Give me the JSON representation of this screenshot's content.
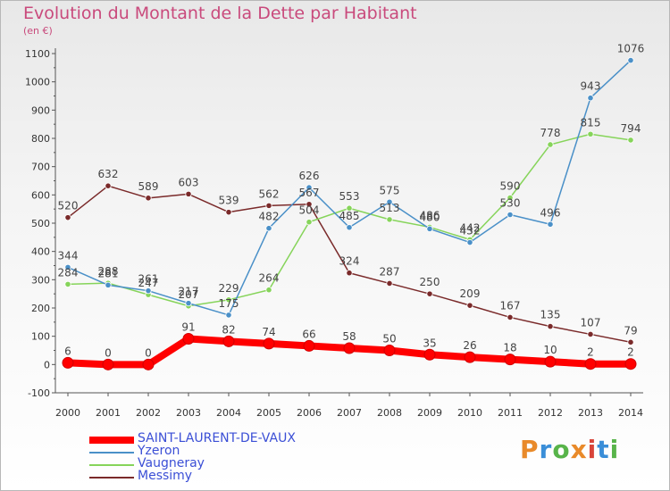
{
  "header": {
    "title": "Evolution du Montant de la Dette par Habitant",
    "subtitle": "(en €)"
  },
  "logo": {
    "text": "Proxiti",
    "colors": [
      "#e98a2a",
      "#3a8ed8",
      "#58b44a",
      "#e98a2a",
      "#d8453a",
      "#3a8ed8",
      "#58b44a"
    ]
  },
  "chart_data": {
    "type": "line",
    "x": [
      "2000",
      "2001",
      "2002",
      "2003",
      "2004",
      "2005",
      "2006",
      "2007",
      "2008",
      "2009",
      "2010",
      "2011",
      "2012",
      "2013",
      "2014"
    ],
    "ylim": [
      -100,
      1100
    ],
    "yticks": [
      "-100",
      "0",
      "100",
      "200",
      "300",
      "400",
      "500",
      "600",
      "700",
      "800",
      "900",
      "1000",
      "1100"
    ],
    "grid": false,
    "legend_position": "bottom-left",
    "series": [
      {
        "name": "SAINT-LAURENT-DE-VAUX",
        "color": "#ff0000",
        "values": [
          6,
          0,
          0,
          91,
          82,
          74,
          66,
          58,
          50,
          35,
          26,
          18,
          10,
          2,
          2
        ],
        "labels": [
          "6",
          "0",
          "0",
          "91",
          "82",
          "74",
          "66",
          "58",
          "50",
          "35",
          "26",
          "18",
          "10",
          "2",
          "2"
        ]
      },
      {
        "name": "Yzeron",
        "color": "#4a90c8",
        "values": [
          344,
          281,
          261,
          217,
          175,
          482,
          626,
          485,
          575,
          480,
          432,
          530,
          496,
          943,
          1076
        ],
        "labels": [
          "344",
          "281",
          "261",
          "217",
          "175",
          "482",
          "626",
          "485",
          "575",
          "480",
          "432",
          "530",
          "496",
          "943",
          "1076"
        ]
      },
      {
        "name": "Vaugneray",
        "color": "#86d45a",
        "values": [
          284,
          288,
          247,
          207,
          229,
          264,
          504,
          553,
          513,
          486,
          442,
          590,
          778,
          815,
          794
        ],
        "labels": [
          "284",
          "288",
          "247",
          "207",
          "229",
          "264",
          "504",
          "553",
          "513",
          "486",
          "442",
          "590",
          "778",
          "815",
          "794"
        ]
      },
      {
        "name": "Messimy",
        "color": "#7a2a2a",
        "values": [
          520,
          632,
          589,
          603,
          539,
          562,
          567,
          324,
          287,
          250,
          209,
          167,
          135,
          107,
          79
        ],
        "labels": [
          "520",
          "632",
          "589",
          "603",
          "539",
          "562",
          "567",
          "324",
          "287",
          "250",
          "209",
          "167",
          "135",
          "107",
          "79"
        ]
      }
    ]
  }
}
